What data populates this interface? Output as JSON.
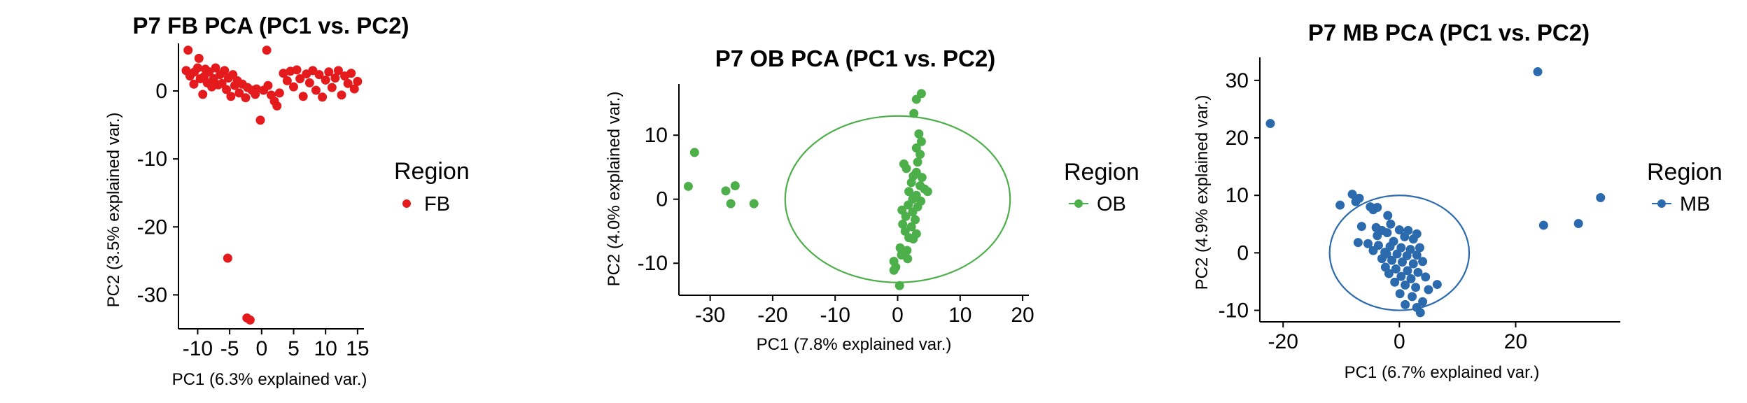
{
  "chart_data": [
    {
      "type": "scatter",
      "title": "P7 FB PCA (PC1 vs. PC2)",
      "xlabel": "PC1 (6.3% explained var.)",
      "ylabel": "PC2 (3.5% explained var.)",
      "xlim": [
        -13,
        16
      ],
      "ylim": [
        -35,
        7
      ],
      "xticks": [
        -10,
        -5,
        0,
        5,
        10,
        15
      ],
      "yticks": [
        0,
        -10,
        -20,
        -30
      ],
      "xtick_labels": [
        "-10",
        "-5",
        "0",
        "5",
        "10",
        "15"
      ],
      "ytick_labels": [
        "0",
        "-10",
        "-20",
        "-30"
      ],
      "grid": false,
      "legend": {
        "position": "right",
        "title": "Region",
        "entries": [
          "FB"
        ]
      },
      "series": [
        {
          "name": "FB",
          "color": "#e41a1c",
          "ellipse": null,
          "points": [
            [
              -11.5,
              6.0
            ],
            [
              -11.8,
              3.0
            ],
            [
              -11.2,
              2.2
            ],
            [
              -10.6,
              1.0
            ],
            [
              -10.5,
              2.8
            ],
            [
              -10.0,
              3.4
            ],
            [
              -9.8,
              4.8
            ],
            [
              -9.6,
              1.8
            ],
            [
              -9.2,
              -0.5
            ],
            [
              -9.0,
              2.1
            ],
            [
              -8.8,
              3.2
            ],
            [
              -8.5,
              1.2
            ],
            [
              -8.2,
              2.8
            ],
            [
              -7.8,
              0.6
            ],
            [
              -7.5,
              1.8
            ],
            [
              -7.2,
              3.4
            ],
            [
              -6.8,
              0.9
            ],
            [
              -6.5,
              2.4
            ],
            [
              -6.2,
              1.1
            ],
            [
              -5.8,
              3.0
            ],
            [
              -5.5,
              0.2
            ],
            [
              -5.2,
              1.9
            ],
            [
              -4.8,
              -0.8
            ],
            [
              -4.5,
              2.4
            ],
            [
              -4.2,
              0.8
            ],
            [
              -3.8,
              1.5
            ],
            [
              -3.5,
              -0.3
            ],
            [
              -3.0,
              1.0
            ],
            [
              -2.5,
              -1.0
            ],
            [
              -2.2,
              0.5
            ],
            [
              -1.5,
              0.1
            ],
            [
              -1.0,
              -0.5
            ],
            [
              -0.8,
              0.3
            ],
            [
              -0.2,
              -4.3
            ],
            [
              0.3,
              0.1
            ],
            [
              0.8,
              6.0
            ],
            [
              1.0,
              0.8
            ],
            [
              1.5,
              -0.6
            ],
            [
              2.0,
              -1.5
            ],
            [
              2.4,
              -2.2
            ],
            [
              2.8,
              -0.3
            ],
            [
              3.4,
              2.6
            ],
            [
              4.0,
              1.5
            ],
            [
              4.5,
              2.9
            ],
            [
              5.0,
              0.6
            ],
            [
              5.5,
              3.1
            ],
            [
              6.0,
              1.8
            ],
            [
              6.5,
              -0.8
            ],
            [
              7.0,
              2.5
            ],
            [
              7.5,
              1.2
            ],
            [
              8.0,
              3.0
            ],
            [
              8.5,
              0.1
            ],
            [
              9.0,
              2.4
            ],
            [
              9.5,
              -0.9
            ],
            [
              10.0,
              1.6
            ],
            [
              10.5,
              2.8
            ],
            [
              11.0,
              0.5
            ],
            [
              11.5,
              1.9
            ],
            [
              12.0,
              3.0
            ],
            [
              12.5,
              -0.6
            ],
            [
              13.0,
              2.2
            ],
            [
              13.5,
              1.1
            ],
            [
              14.0,
              2.6
            ],
            [
              14.5,
              0.3
            ],
            [
              15.0,
              1.4
            ],
            [
              -5.3,
              -24.6
            ],
            [
              -2.3,
              -33.4
            ],
            [
              -1.8,
              -33.7
            ]
          ]
        }
      ]
    },
    {
      "type": "scatter",
      "title": "P7 OB PCA (PC1 vs. PC2)",
      "xlabel": "PC1 (7.8% explained var.)",
      "ylabel": "PC2 (4.0% explained var.)",
      "xlim": [
        -35,
        21
      ],
      "ylim": [
        -15,
        18
      ],
      "xticks": [
        -30,
        -20,
        -10,
        0,
        10,
        20
      ],
      "yticks": [
        10,
        0,
        -10
      ],
      "xtick_labels": [
        "-30",
        "-20",
        "-10",
        "0",
        "10",
        "20"
      ],
      "ytick_labels": [
        "10",
        "0",
        "-10"
      ],
      "grid": false,
      "legend": {
        "position": "right",
        "title": "Region",
        "entries": [
          "OB"
        ]
      },
      "series": [
        {
          "name": "OB",
          "color": "#4daf4a",
          "ellipse": {
            "cx": 0,
            "cy": 0,
            "rx": 18,
            "ry": 13
          },
          "points": [
            [
              -32.5,
              7.3
            ],
            [
              -33.5,
              2.0
            ],
            [
              -27.5,
              1.3
            ],
            [
              -26.0,
              2.1
            ],
            [
              -26.7,
              -0.7
            ],
            [
              -23.0,
              -0.7
            ],
            [
              3.8,
              16.5
            ],
            [
              3.0,
              15.6
            ],
            [
              2.6,
              13.4
            ],
            [
              3.4,
              10.2
            ],
            [
              3.8,
              9.0
            ],
            [
              3.0,
              8.0
            ],
            [
              3.6,
              7.0
            ],
            [
              3.2,
              5.8
            ],
            [
              1.4,
              4.8
            ],
            [
              3.0,
              4.2
            ],
            [
              2.5,
              3.6
            ],
            [
              3.9,
              3.4
            ],
            [
              2.2,
              2.6
            ],
            [
              3.6,
              2.1
            ],
            [
              4.3,
              1.6
            ],
            [
              1.8,
              1.2
            ],
            [
              3.0,
              0.6
            ],
            [
              2.4,
              0.0
            ],
            [
              3.7,
              -0.3
            ],
            [
              1.7,
              -0.9
            ],
            [
              3.2,
              -1.2
            ],
            [
              0.7,
              -1.7
            ],
            [
              2.4,
              -2.0
            ],
            [
              1.3,
              -2.7
            ],
            [
              2.8,
              -3.2
            ],
            [
              0.8,
              -3.9
            ],
            [
              2.2,
              -4.3
            ],
            [
              1.2,
              -5.0
            ],
            [
              3.0,
              -5.4
            ],
            [
              1.8,
              -6.0
            ],
            [
              2.5,
              -6.2
            ],
            [
              0.4,
              -7.6
            ],
            [
              1.5,
              -8.0
            ],
            [
              0.6,
              -8.7
            ],
            [
              1.6,
              -9.3
            ],
            [
              -0.6,
              -9.7
            ],
            [
              -0.3,
              -10.6
            ],
            [
              -0.6,
              -11.1
            ],
            [
              0.3,
              -13.5
            ],
            [
              4.8,
              1.2
            ],
            [
              1.0,
              5.5
            ]
          ]
        }
      ]
    },
    {
      "type": "scatter",
      "title": "P7 MB PCA (PC1 vs. PC2)",
      "xlabel": "PC1 (6.7% explained var.)",
      "ylabel": "PC2 (4.9% explained var.)",
      "xlim": [
        -24,
        38
      ],
      "ylim": [
        -12,
        34
      ],
      "xticks": [
        -20,
        0,
        20
      ],
      "yticks": [
        30,
        20,
        10,
        0,
        -10
      ],
      "xtick_labels": [
        "-20",
        "0",
        "20"
      ],
      "ytick_labels": [
        "30",
        "20",
        "10",
        "0",
        "-10"
      ],
      "grid": false,
      "legend": {
        "position": "right",
        "title": "Region",
        "entries": [
          "MB"
        ]
      },
      "series": [
        {
          "name": "MB",
          "color": "#2c6aae",
          "ellipse": {
            "cx": 0,
            "cy": 0,
            "rx": 12,
            "ry": 10
          },
          "points": [
            [
              -22.2,
              22.5
            ],
            [
              23.8,
              31.5
            ],
            [
              24.8,
              4.8
            ],
            [
              30.8,
              5.1
            ],
            [
              34.6,
              9.6
            ],
            [
              -8.1,
              10.2
            ],
            [
              -6.9,
              9.5
            ],
            [
              -10.2,
              8.3
            ],
            [
              -7.5,
              8.9
            ],
            [
              -5.0,
              8.0
            ],
            [
              -3.8,
              7.9
            ],
            [
              -4.5,
              7.5
            ],
            [
              -2.0,
              6.5
            ],
            [
              -1.5,
              5.0
            ],
            [
              0.0,
              4.0
            ],
            [
              -6.5,
              4.6
            ],
            [
              -4.0,
              4.4
            ],
            [
              -3.0,
              3.9
            ],
            [
              -2.1,
              3.5
            ],
            [
              1.5,
              3.9
            ],
            [
              3.0,
              3.3
            ],
            [
              0.9,
              2.8
            ],
            [
              2.4,
              2.4
            ],
            [
              -7.1,
              1.8
            ],
            [
              -5.4,
              1.6
            ],
            [
              -3.6,
              1.3
            ],
            [
              -1.6,
              1.1
            ],
            [
              0.3,
              0.9
            ],
            [
              1.9,
              0.6
            ],
            [
              3.5,
              0.9
            ],
            [
              -4.5,
              0.4
            ],
            [
              -2.5,
              0.1
            ],
            [
              -0.4,
              -0.2
            ],
            [
              1.3,
              -0.5
            ],
            [
              3.0,
              -0.4
            ],
            [
              -3.0,
              -1.0
            ],
            [
              -1.3,
              -1.3
            ],
            [
              0.5,
              -1.6
            ],
            [
              2.4,
              -1.9
            ],
            [
              4.0,
              -1.5
            ],
            [
              -2.4,
              -2.5
            ],
            [
              -0.6,
              -2.8
            ],
            [
              1.4,
              -3.1
            ],
            [
              3.2,
              -3.4
            ],
            [
              -1.8,
              -3.6
            ],
            [
              0.3,
              -4.1
            ],
            [
              2.0,
              -4.5
            ],
            [
              4.5,
              -4.2
            ],
            [
              6.5,
              -5.5
            ],
            [
              -0.8,
              -5.1
            ],
            [
              1.0,
              -5.6
            ],
            [
              2.8,
              -6.0
            ],
            [
              5.0,
              -6.4
            ],
            [
              0.1,
              -7.1
            ],
            [
              2.2,
              -7.6
            ],
            [
              4.0,
              -8.5
            ],
            [
              1.0,
              -9.0
            ],
            [
              3.0,
              -9.5
            ],
            [
              3.6,
              -10.4
            ],
            [
              -3.8,
              3.0
            ],
            [
              -1.0,
              2.0
            ],
            [
              -2.2,
              -0.2
            ]
          ]
        }
      ]
    }
  ]
}
